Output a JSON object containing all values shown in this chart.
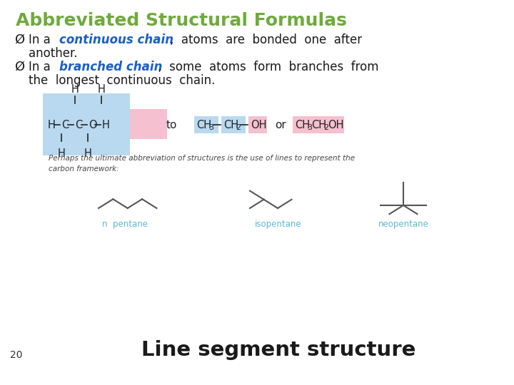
{
  "title": "Abbreviated Structural Formulas",
  "title_color": "#6faa3c",
  "text_color": "#1a1a1a",
  "blue_color": "#1a5fc8",
  "bg_color": "#ffffff",
  "small_text": "Perhaps the ultimate abbreviation of structures is the use of lines to represent the\ncarbon framework:",
  "label_n_pentane": "n  pentane",
  "label_isopentane": "isopentane",
  "label_neopentane": "neopentane",
  "label_color": "#5bb8d4",
  "bottom_label": "Line segment structure",
  "bottom_label_color": "#1a1a1a",
  "page_number": "20",
  "pink_bg": "#f5c0cf",
  "light_blue_bg": "#b8d9f0",
  "line_color": "#555555",
  "formula_color": "#222222"
}
